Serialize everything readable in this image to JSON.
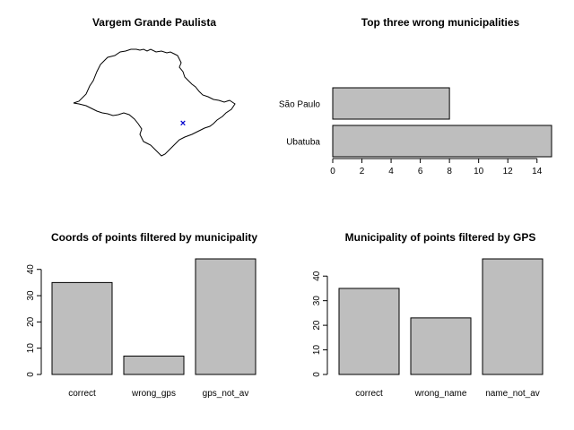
{
  "chart_data": [
    {
      "type": "map",
      "title": "Vargem Grande Paulista",
      "marker": {
        "symbol": "x",
        "color": "#0000cc"
      }
    },
    {
      "type": "bar",
      "orientation": "horizontal",
      "title": "Top three wrong municipalities",
      "categories": [
        "Ubatuba",
        "São Paulo"
      ],
      "values": [
        15,
        8
      ],
      "xlim": [
        0,
        15
      ],
      "xticks": [
        "0",
        "2",
        "4",
        "6",
        "8",
        "10",
        "12",
        "14"
      ]
    },
    {
      "type": "bar",
      "title": "Coords of points filtered by municipality",
      "categories": [
        "correct",
        "wrong_gps",
        "gps_not_av"
      ],
      "values": [
        35,
        7,
        44
      ],
      "ylim": [
        0,
        44
      ],
      "yticks": [
        "0",
        "10",
        "20",
        "30",
        "40"
      ]
    },
    {
      "type": "bar",
      "title": "Municipality of points filtered by GPS",
      "categories": [
        "correct",
        "wrong_name",
        "name_not_av"
      ],
      "values": [
        35,
        23,
        47
      ],
      "ylim": [
        0,
        47
      ],
      "yticks": [
        "0",
        "10",
        "20",
        "30",
        "40"
      ]
    }
  ]
}
